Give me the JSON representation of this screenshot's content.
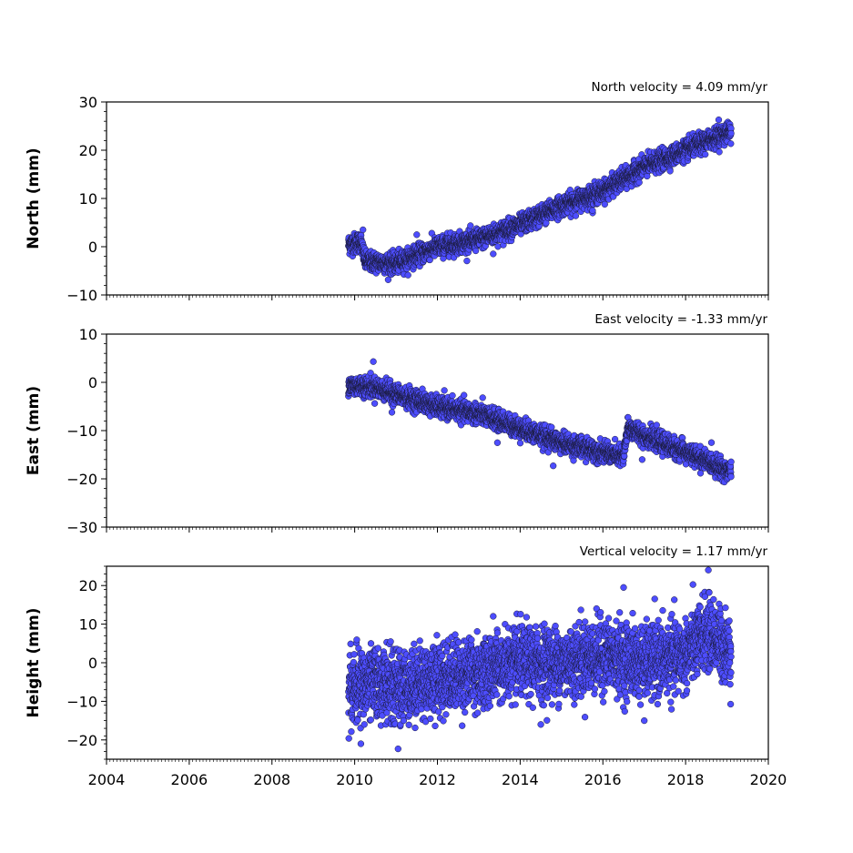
{
  "chart_data": [
    {
      "type": "scatter",
      "title": "North velocity = 4.09 mm/yr",
      "xlabel": "",
      "ylabel": "North (mm)",
      "xlim": [
        2004,
        2020
      ],
      "ylim": [
        -10,
        30
      ],
      "xticks": [
        2004,
        2006,
        2008,
        2010,
        2012,
        2014,
        2016,
        2018,
        2020
      ],
      "yticks": [
        -10,
        0,
        10,
        20,
        30
      ],
      "ytick_labels": [
        "−10",
        "0",
        "10",
        "20",
        "30"
      ],
      "show_xtick_labels": false,
      "grid": false,
      "series": [
        {
          "color": "#4d4dff",
          "time_range": [
            2009.85,
            2019.1
          ],
          "trend_points": [
            [
              2009.85,
              0.5
            ],
            [
              2010.15,
              1.0
            ],
            [
              2010.25,
              -3.0
            ],
            [
              2011.0,
              -3.5
            ],
            [
              2012.0,
              0.0
            ],
            [
              2013.0,
              1.5
            ],
            [
              2014.0,
              4.5
            ],
            [
              2015.0,
              8.5
            ],
            [
              2016.0,
              11.5
            ],
            [
              2017.0,
              16.5
            ],
            [
              2018.0,
              20.0
            ],
            [
              2019.1,
              24.0
            ]
          ],
          "scatter_mm": 1.0,
          "outliers": [
            [
              2010.2,
              3.5
            ],
            [
              2011.5,
              2.5
            ],
            [
              2013.35,
              -1.5
            ],
            [
              2015.75,
              7.5
            ],
            [
              2018.8,
              26.3
            ]
          ]
        }
      ]
    },
    {
      "type": "scatter",
      "title": "East velocity = -1.33 mm/yr",
      "xlabel": "",
      "ylabel": "East (mm)",
      "xlim": [
        2004,
        2020
      ],
      "ylim": [
        -30,
        10
      ],
      "xticks": [
        2004,
        2006,
        2008,
        2010,
        2012,
        2014,
        2016,
        2018,
        2020
      ],
      "yticks": [
        -30,
        -20,
        -10,
        0,
        10
      ],
      "ytick_labels": [
        "−30",
        "−20",
        "−10",
        "0",
        "10"
      ],
      "show_xtick_labels": false,
      "grid": false,
      "series": [
        {
          "color": "#4d4dff",
          "time_range": [
            2009.85,
            2019.1
          ],
          "trend_points": [
            [
              2009.85,
              -0.5
            ],
            [
              2010.5,
              -1.0
            ],
            [
              2011.0,
              -2.5
            ],
            [
              2012.0,
              -5.0
            ],
            [
              2013.0,
              -6.5
            ],
            [
              2014.0,
              -9.5
            ],
            [
              2015.0,
              -12.5
            ],
            [
              2016.0,
              -14.5
            ],
            [
              2016.5,
              -15.5
            ],
            [
              2016.6,
              -9.5
            ],
            [
              2017.0,
              -11.0
            ],
            [
              2018.0,
              -14.5
            ],
            [
              2019.1,
              -18.5
            ]
          ],
          "scatter_mm": 1.0,
          "outliers": [
            [
              2010.45,
              4.3
            ],
            [
              2010.9,
              -6.2
            ],
            [
              2013.45,
              -12.5
            ],
            [
              2014.8,
              -17.3
            ],
            [
              2016.95,
              -16.0
            ]
          ]
        }
      ]
    },
    {
      "type": "scatter",
      "title": "Vertical velocity = 1.17 mm/yr",
      "xlabel": "",
      "ylabel": "Height (mm)",
      "xlim": [
        2004,
        2020
      ],
      "ylim": [
        -25,
        25
      ],
      "xticks": [
        2004,
        2006,
        2008,
        2010,
        2012,
        2014,
        2016,
        2018,
        2020
      ],
      "xtick_labels": [
        "2004",
        "2006",
        "2008",
        "2010",
        "2012",
        "2014",
        "2016",
        "2018",
        "2020"
      ],
      "yticks": [
        -20,
        -10,
        0,
        10,
        20
      ],
      "ytick_labels": [
        "−20",
        "−10",
        "0",
        "10",
        "20"
      ],
      "show_xtick_labels": true,
      "grid": false,
      "series": [
        {
          "color": "#4d4dff",
          "time_range": [
            2009.85,
            2019.1
          ],
          "trend_points": [
            [
              2009.85,
              -7.0
            ],
            [
              2010.5,
              -5.0
            ],
            [
              2011.0,
              -6.5
            ],
            [
              2012.0,
              -4.0
            ],
            [
              2013.0,
              -2.5
            ],
            [
              2014.0,
              0.0
            ],
            [
              2015.0,
              0.0
            ],
            [
              2016.0,
              2.0
            ],
            [
              2017.0,
              0.0
            ],
            [
              2017.5,
              1.0
            ],
            [
              2018.0,
              2.0
            ],
            [
              2018.5,
              8.0
            ],
            [
              2019.1,
              3.0
            ]
          ],
          "scatter_mm": 4.5,
          "outliers": [
            [
              2010.15,
              -21.0
            ],
            [
              2011.05,
              -22.3
            ],
            [
              2014.5,
              -16.0
            ],
            [
              2016.5,
              19.5
            ],
            [
              2018.55,
              24.0
            ],
            [
              2017.0,
              -15.0
            ]
          ]
        }
      ]
    }
  ]
}
